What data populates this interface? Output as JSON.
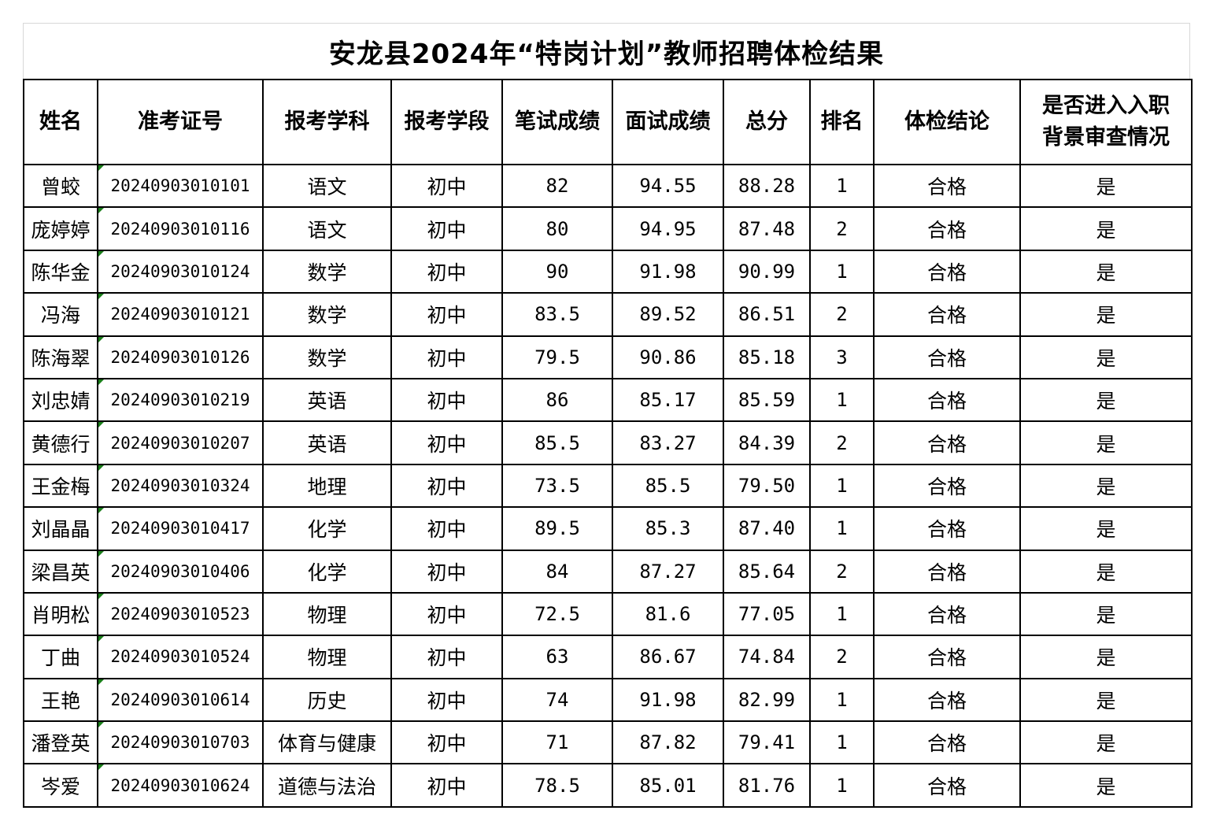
{
  "title": "安龙县2024年“特岗计划”教师招聘体检结果",
  "headers": [
    "姓名",
    "准考证号",
    "报考学科",
    "报考学段",
    "笔试成绩",
    "面试成绩",
    "总分",
    "排名",
    "体检结论",
    "是否进入入职背景审查情况"
  ],
  "rows": [
    [
      "曾蛟",
      "20240903010101",
      "语文",
      "初中",
      "82",
      "94.55",
      "88.28",
      "1",
      "合格",
      "是"
    ],
    [
      "庞婷婷",
      "20240903010116",
      "语文",
      "初中",
      "80",
      "94.95",
      "87.48",
      "2",
      "合格",
      "是"
    ],
    [
      "陈华金",
      "20240903010124",
      "数学",
      "初中",
      "90",
      "91.98",
      "90.99",
      "1",
      "合格",
      "是"
    ],
    [
      "冯海",
      "20240903010121",
      "数学",
      "初中",
      "83.5",
      "89.52",
      "86.51",
      "2",
      "合格",
      "是"
    ],
    [
      "陈海翠",
      "20240903010126",
      "数学",
      "初中",
      "79.5",
      "90.86",
      "85.18",
      "3",
      "合格",
      "是"
    ],
    [
      "刘忠婧",
      "20240903010219",
      "英语",
      "初中",
      "86",
      "85.17",
      "85.59",
      "1",
      "合格",
      "是"
    ],
    [
      "黄德行",
      "20240903010207",
      "英语",
      "初中",
      "85.5",
      "83.27",
      "84.39",
      "2",
      "合格",
      "是"
    ],
    [
      "王金梅",
      "20240903010324",
      "地理",
      "初中",
      "73.5",
      "85.5",
      "79.50",
      "1",
      "合格",
      "是"
    ],
    [
      "刘晶晶",
      "20240903010417",
      "化学",
      "初中",
      "89.5",
      "85.3",
      "87.40",
      "1",
      "合格",
      "是"
    ],
    [
      "梁昌英",
      "20240903010406",
      "化学",
      "初中",
      "84",
      "87.27",
      "85.64",
      "2",
      "合格",
      "是"
    ],
    [
      "肖明松",
      "20240903010523",
      "物理",
      "初中",
      "72.5",
      "81.6",
      "77.05",
      "1",
      "合格",
      "是"
    ],
    [
      "丁曲",
      "20240903010524",
      "物理",
      "初中",
      "63",
      "86.67",
      "74.84",
      "2",
      "合格",
      "是"
    ],
    [
      "王艳",
      "20240903010614",
      "历史",
      "初中",
      "74",
      "91.98",
      "82.99",
      "1",
      "合格",
      "是"
    ],
    [
      "潘登英",
      "20240903010703",
      "体育与健康",
      "初中",
      "71",
      "87.82",
      "79.41",
      "1",
      "合格",
      "是"
    ],
    [
      "岑爱",
      "20240903010624",
      "道德与法治",
      "初中",
      "78.5",
      "85.01",
      "81.76",
      "1",
      "合格",
      "是"
    ]
  ]
}
